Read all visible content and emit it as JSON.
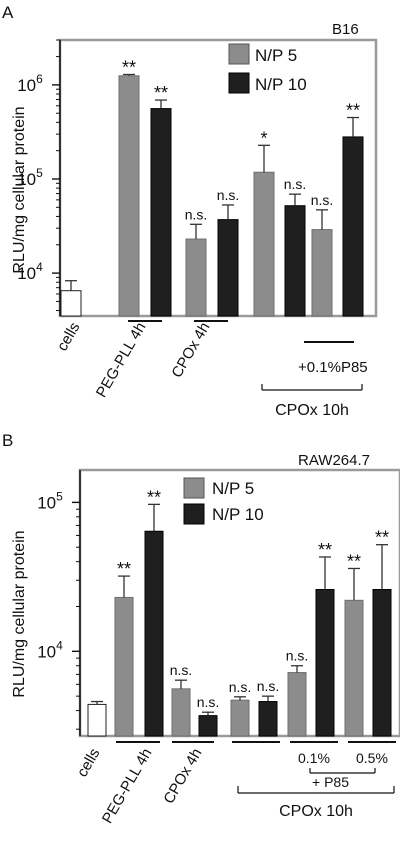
{
  "chart_data": [
    {
      "type": "bar",
      "panel_label": "A",
      "cell_line": "B16",
      "y_scale": "log",
      "ylim": [
        3500,
        3000000
      ],
      "ylabel": "RLU/mg cellular protein",
      "y_ticks": [
        {
          "value": 10000,
          "base": "10",
          "exp": "4"
        },
        {
          "value": 100000,
          "base": "10",
          "exp": "5"
        },
        {
          "value": 1000000,
          "base": "10",
          "exp": "6"
        }
      ],
      "legend": [
        {
          "name": "N/P 5",
          "color": "#8c8c8c"
        },
        {
          "name": "N/P 10",
          "color": "#1f1f1f"
        }
      ],
      "legend_position": "top-right",
      "bars": [
        {
          "series": "cells",
          "value": 6500,
          "err": 1800,
          "annotation": "",
          "fill": "#ffffff"
        },
        {
          "series": "N/P 5",
          "value": 1250000,
          "err": 40000,
          "annotation": "**",
          "fill": "#8c8c8c"
        },
        {
          "series": "N/P 10",
          "value": 560000,
          "err": 130000,
          "annotation": "**",
          "fill": "#1f1f1f"
        },
        {
          "series": "N/P 5",
          "value": 23000,
          "err": 10000,
          "annotation": "n.s.",
          "fill": "#8c8c8c"
        },
        {
          "series": "N/P 10",
          "value": 37000,
          "err": 16000,
          "annotation": "n.s.",
          "fill": "#1f1f1f"
        },
        {
          "series": "N/P 5",
          "value": 118000,
          "err": 110000,
          "annotation": "*",
          "fill": "#8c8c8c"
        },
        {
          "series": "N/P 10",
          "value": 52000,
          "err": 17000,
          "annotation": "n.s.",
          "fill": "#1f1f1f"
        },
        {
          "series": "N/P 5",
          "value": 29000,
          "err": 18000,
          "annotation": "n.s.",
          "fill": "#8c8c8c"
        },
        {
          "series": "N/P 10",
          "value": 280000,
          "err": 170000,
          "annotation": "**",
          "fill": "#1f1f1f"
        }
      ],
      "x_labels": [
        "cells",
        "PEG-PLL 4h",
        "CPOx 4h"
      ],
      "sub_labels": [
        "+0.1%P85"
      ],
      "group_label": "CPOx 10h"
    },
    {
      "type": "bar",
      "panel_label": "B",
      "cell_line": "RAW264.7",
      "y_scale": "log",
      "ylim": [
        2700,
        165000
      ],
      "ylabel": "RLU/mg cellular protein",
      "y_ticks": [
        {
          "value": 10000,
          "base": "10",
          "exp": "4"
        },
        {
          "value": 100000,
          "base": "10",
          "exp": "5"
        }
      ],
      "legend": [
        {
          "name": "N/P 5",
          "color": "#8c8c8c"
        },
        {
          "name": "N/P 10",
          "color": "#1f1f1f"
        }
      ],
      "legend_position": "top-right",
      "bars": [
        {
          "series": "cells",
          "value": 4400,
          "err": 200,
          "annotation": "",
          "fill": "#ffffff"
        },
        {
          "series": "N/P 5",
          "value": 23000,
          "err": 9000,
          "annotation": "**",
          "fill": "#8c8c8c"
        },
        {
          "series": "N/P 10",
          "value": 64000,
          "err": 33000,
          "annotation": "**",
          "fill": "#1f1f1f"
        },
        {
          "series": "N/P 5",
          "value": 5600,
          "err": 800,
          "annotation": "n.s.",
          "fill": "#8c8c8c"
        },
        {
          "series": "N/P 10",
          "value": 3700,
          "err": 200,
          "annotation": "n.s.",
          "fill": "#1f1f1f"
        },
        {
          "series": "N/P 5",
          "value": 4700,
          "err": 250,
          "annotation": "n.s.",
          "fill": "#8c8c8c"
        },
        {
          "series": "N/P 10",
          "value": 4600,
          "err": 400,
          "annotation": "n.s.",
          "fill": "#1f1f1f"
        },
        {
          "series": "N/P 5",
          "value": 7200,
          "err": 800,
          "annotation": "n.s.",
          "fill": "#8c8c8c"
        },
        {
          "series": "N/P 10",
          "value": 26000,
          "err": 17000,
          "annotation": "**",
          "fill": "#1f1f1f"
        },
        {
          "series": "N/P 5",
          "value": 22000,
          "err": 14000,
          "annotation": "**",
          "fill": "#8c8c8c"
        },
        {
          "series": "N/P 10",
          "value": 26000,
          "err": 26000,
          "annotation": "**",
          "fill": "#1f1f1f"
        }
      ],
      "x_labels": [
        "cells",
        "PEG-PLL 4h",
        "CPOx 4h"
      ],
      "sub_labels": [
        "0.1%",
        "0.5%",
        "+ P85"
      ],
      "group_label": "CPOx 10h"
    }
  ]
}
